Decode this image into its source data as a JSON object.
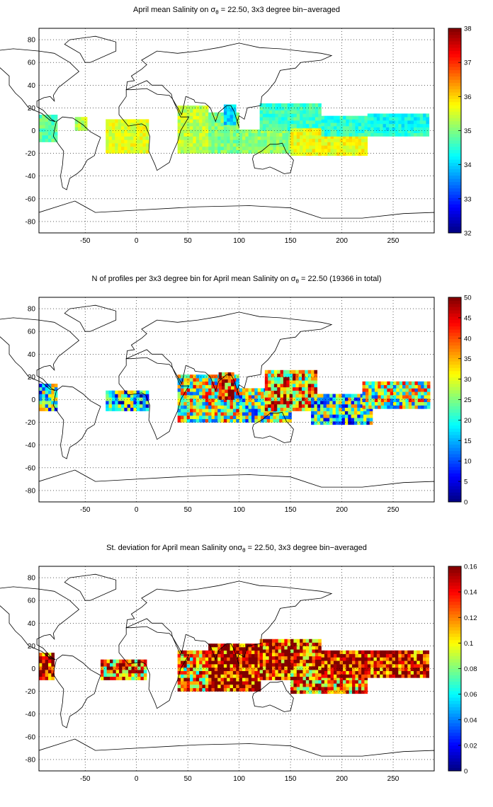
{
  "chart_data": [
    {
      "type": "heatmap",
      "title": "April mean Salinity on σθ = 22.50, 3x3 degree bin−averaged",
      "title_parts": {
        "before": "April mean Salinity on σ",
        "sub": "θ",
        "after": " = 22.50, 3x3 degree bin−averaged"
      },
      "xlim": [
        -95,
        290
      ],
      "ylim": [
        -90,
        90
      ],
      "xticks": [
        -50,
        0,
        50,
        100,
        150,
        200,
        250
      ],
      "yticks": [
        -80,
        -60,
        -40,
        -20,
        0,
        20,
        40,
        60,
        80
      ],
      "grid": true,
      "grid_style": "dotted",
      "colorbar": {
        "min": 32,
        "max": 38,
        "ticks": [
          32,
          33,
          34,
          35,
          36,
          37,
          38
        ],
        "colormap": "jet"
      },
      "bins": [
        {
          "lon_range": [
            -95,
            -78
          ],
          "lat_range": [
            -10,
            14
          ],
          "value": 34.8
        },
        {
          "lon_range": [
            -60,
            -48
          ],
          "lat_range": [
            0,
            10
          ],
          "value": 35.3
        },
        {
          "lon_range": [
            -30,
            10
          ],
          "lat_range": [
            -20,
            8
          ],
          "value": 35.6
        },
        {
          "lon_range": [
            40,
            70
          ],
          "lat_range": [
            -20,
            20
          ],
          "value": 35.4
        },
        {
          "lon_range": [
            70,
            100
          ],
          "lat_range": [
            -20,
            15
          ],
          "value": 35.0
        },
        {
          "lon_range": [
            85,
            95
          ],
          "lat_range": [
            5,
            22
          ],
          "value": 34.0
        },
        {
          "lon_range": [
            100,
            150
          ],
          "lat_range": [
            -20,
            0
          ],
          "value": 35.1
        },
        {
          "lon_range": [
            120,
            180
          ],
          "lat_range": [
            0,
            22
          ],
          "value": 34.6
        },
        {
          "lon_range": [
            150,
            225
          ],
          "lat_range": [
            -22,
            0
          ],
          "value": 35.7
        },
        {
          "lon_range": [
            180,
            285
          ],
          "lat_range": [
            -5,
            12
          ],
          "value": 34.5
        },
        {
          "lon_range": [
            225,
            285
          ],
          "lat_range": [
            0,
            15
          ],
          "value": 34.3
        }
      ]
    },
    {
      "type": "heatmap",
      "title": "N of profiles per 3x3 degree bin for April mean Salinity on σθ = 22.50 (19366 in total)",
      "title_parts": {
        "before": "N of profiles per 3x3 degree bin for April mean Salinity on σ",
        "sub": "θ",
        "after": " = 22.50 (19366 in total)"
      },
      "xlim": [
        -95,
        290
      ],
      "ylim": [
        -90,
        90
      ],
      "xticks": [
        -50,
        0,
        50,
        100,
        150,
        200,
        250
      ],
      "yticks": [
        -80,
        -60,
        -40,
        -20,
        0,
        20,
        40,
        60,
        80
      ],
      "grid": true,
      "grid_style": "dotted",
      "colorbar": {
        "min": 0,
        "max": 50,
        "ticks": [
          0,
          5,
          10,
          15,
          20,
          25,
          30,
          35,
          40,
          45,
          50
        ],
        "colormap": "jet"
      },
      "bins": [
        {
          "lon_range": [
            -95,
            -78
          ],
          "lat_range": [
            -10,
            14
          ],
          "value": 22
        },
        {
          "lon_range": [
            -30,
            10
          ],
          "lat_range": [
            -10,
            8
          ],
          "value": 18
        },
        {
          "lon_range": [
            40,
            100
          ],
          "lat_range": [
            -20,
            20
          ],
          "value": 28
        },
        {
          "lon_range": [
            80,
            95
          ],
          "lat_range": [
            0,
            22
          ],
          "value": 42
        },
        {
          "lon_range": [
            100,
            150
          ],
          "lat_range": [
            -20,
            10
          ],
          "value": 24
        },
        {
          "lon_range": [
            125,
            175
          ],
          "lat_range": [
            -10,
            25
          ],
          "value": 35
        },
        {
          "lon_range": [
            170,
            230
          ],
          "lat_range": [
            -22,
            5
          ],
          "value": 20
        },
        {
          "lon_range": [
            220,
            285
          ],
          "lat_range": [
            -8,
            15
          ],
          "value": 27
        }
      ]
    },
    {
      "type": "heatmap",
      "title": "St. deviation for April mean Salinity onσθ = 22.50, 3x3 degree bin−averaged",
      "title_parts": {
        "before": "St. deviation for April mean Salinity onσ",
        "sub": "θ",
        "after": " = 22.50, 3x3 degree bin−averaged"
      },
      "xlim": [
        -95,
        290
      ],
      "ylim": [
        -90,
        90
      ],
      "xticks": [
        -50,
        0,
        50,
        100,
        150,
        200,
        250
      ],
      "yticks": [
        -80,
        -60,
        -40,
        -20,
        0,
        20,
        40,
        60,
        80
      ],
      "grid": true,
      "grid_style": "dotted",
      "colorbar": {
        "min": 0,
        "max": 0.16,
        "ticks": [
          0,
          0.02,
          0.04,
          0.06,
          0.08,
          0.1,
          0.12,
          0.14,
          0.16
        ],
        "colormap": "jet"
      },
      "bins": [
        {
          "lon_range": [
            -95,
            -80
          ],
          "lat_range": [
            -10,
            14
          ],
          "value": 0.15
        },
        {
          "lon_range": [
            -35,
            10
          ],
          "lat_range": [
            -10,
            8
          ],
          "value": 0.12
        },
        {
          "lon_range": [
            40,
            70
          ],
          "lat_range": [
            -20,
            15
          ],
          "value": 0.11
        },
        {
          "lon_range": [
            70,
            120
          ],
          "lat_range": [
            -20,
            20
          ],
          "value": 0.15
        },
        {
          "lon_range": [
            120,
            180
          ],
          "lat_range": [
            -10,
            25
          ],
          "value": 0.14
        },
        {
          "lon_range": [
            150,
            225
          ],
          "lat_range": [
            -22,
            0
          ],
          "value": 0.12
        },
        {
          "lon_range": [
            180,
            285
          ],
          "lat_range": [
            -8,
            14
          ],
          "value": 0.15
        }
      ]
    }
  ]
}
